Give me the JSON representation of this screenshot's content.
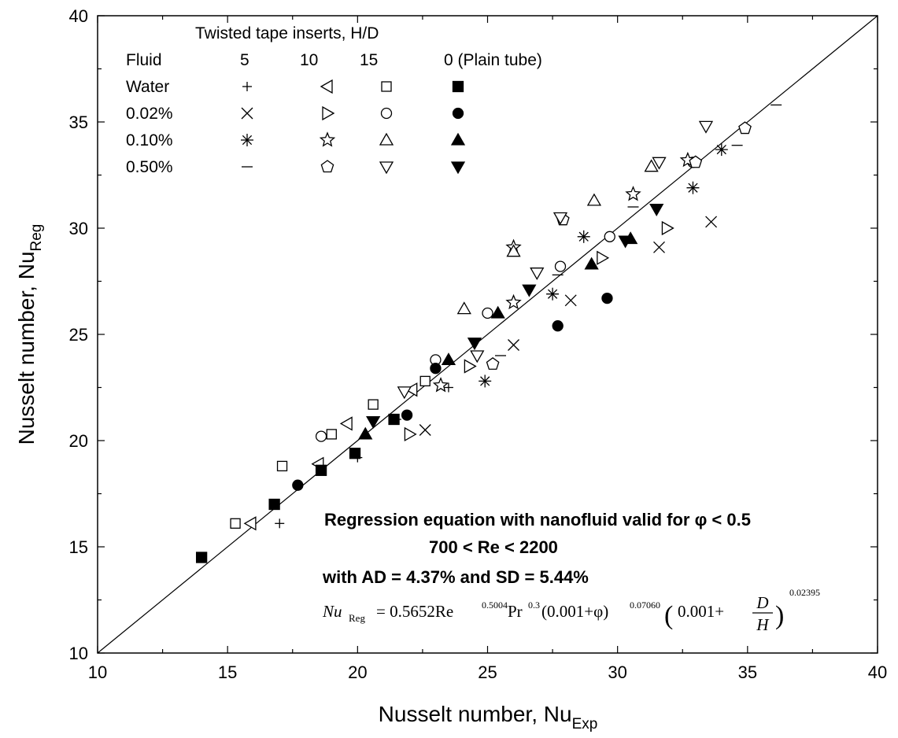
{
  "chart_data": {
    "type": "scatter",
    "xlabel": "Nusselt number, Nu",
    "xlabel_sub": "Exp",
    "ylabel": "Nusselt number, Nu",
    "ylabel_sub": "Reg",
    "xlim": [
      10,
      40
    ],
    "ylim": [
      10,
      40
    ],
    "xticks": [
      "10",
      "15",
      "20",
      "25",
      "30",
      "35",
      "40"
    ],
    "yticks": [
      "10",
      "15",
      "20",
      "25",
      "30",
      "35",
      "40"
    ],
    "grid": false,
    "legend_placement": "top-left",
    "reference_line": {
      "from": [
        10,
        10
      ],
      "to": [
        40,
        40
      ]
    },
    "legend": {
      "title": "Twisted tape inserts, H/D",
      "fluid_header": "Fluid",
      "columns": [
        "5",
        "10",
        "15",
        "0 (Plain tube)"
      ],
      "rows": [
        "Water",
        "0.02%",
        "0.10%",
        "0.50%"
      ]
    },
    "annotations": {
      "line1": "Regression equation with nanofluid valid for φ < 0.5",
      "line2": "700 < Re < 2200",
      "line3": "with AD = 4.37% and SD = 5.44%"
    },
    "equation": {
      "lhs": "Nu",
      "lhs_sub": "Reg",
      "coef": "= 0.5652Re",
      "re_exp": "0.5004",
      "pr": "Pr",
      "pr_exp": "0.3",
      "term1": "(0.001+φ)",
      "term1_exp": "0.07060",
      "term2_lead": "0.001+",
      "frac_num": "D",
      "frac_den": "H",
      "term2_exp": "0.02395",
      "open_paren": "(",
      "close_paren": ")"
    },
    "series": [
      {
        "name": "Water, H/D=5",
        "marker": "plus",
        "points": [
          [
            17.0,
            16.1
          ],
          [
            20.0,
            19.2
          ],
          [
            21.5,
            21.0
          ],
          [
            23.5,
            22.5
          ]
        ]
      },
      {
        "name": "Water, H/D=10",
        "marker": "tri-left",
        "points": [
          [
            15.9,
            16.1
          ],
          [
            18.5,
            18.9
          ],
          [
            19.6,
            20.8
          ],
          [
            22.1,
            22.4
          ]
        ]
      },
      {
        "name": "Water, H/D=15",
        "marker": "square-open",
        "points": [
          [
            15.3,
            16.1
          ],
          [
            17.1,
            18.8
          ],
          [
            19.0,
            20.3
          ],
          [
            20.6,
            21.7
          ],
          [
            22.6,
            22.8
          ]
        ]
      },
      {
        "name": "Water, H/D=0 (Plain tube)",
        "marker": "square-filled",
        "points": [
          [
            14.0,
            14.5
          ],
          [
            16.8,
            17.0
          ],
          [
            18.6,
            18.6
          ],
          [
            19.9,
            19.4
          ],
          [
            21.4,
            21.0
          ]
        ]
      },
      {
        "name": "0.02%, H/D=5",
        "marker": "cross",
        "points": [
          [
            22.6,
            20.5
          ],
          [
            26.0,
            24.5
          ],
          [
            28.2,
            26.6
          ],
          [
            31.6,
            29.1
          ],
          [
            33.6,
            30.3
          ]
        ]
      },
      {
        "name": "0.02%, H/D=10",
        "marker": "tri-right",
        "points": [
          [
            22.0,
            20.3
          ],
          [
            24.3,
            23.5
          ],
          [
            29.4,
            28.6
          ],
          [
            31.9,
            30.0
          ]
        ]
      },
      {
        "name": "0.02%, H/D=15",
        "marker": "circle-open",
        "points": [
          [
            18.6,
            20.2
          ],
          [
            23.0,
            23.8
          ],
          [
            25.0,
            26.0
          ],
          [
            27.8,
            28.2
          ],
          [
            29.7,
            29.6
          ],
          [
            32.9,
            33.1
          ]
        ]
      },
      {
        "name": "0.02%, H/D=0 (Plain tube)",
        "marker": "circle-filled",
        "points": [
          [
            17.7,
            17.9
          ],
          [
            21.9,
            21.2
          ],
          [
            23.0,
            23.4
          ],
          [
            27.7,
            25.4
          ],
          [
            29.6,
            26.7
          ]
        ]
      },
      {
        "name": "0.10%, H/D=5",
        "marker": "asterisk",
        "points": [
          [
            24.9,
            22.8
          ],
          [
            27.5,
            26.9
          ],
          [
            28.7,
            29.6
          ],
          [
            32.9,
            31.9
          ],
          [
            34.0,
            33.7
          ]
        ]
      },
      {
        "name": "0.10%, H/D=10",
        "marker": "star-open",
        "points": [
          [
            23.2,
            22.6
          ],
          [
            26.0,
            26.5
          ],
          [
            26.0,
            29.1
          ],
          [
            30.6,
            31.6
          ],
          [
            32.7,
            33.2
          ]
        ]
      },
      {
        "name": "0.10%, H/D=15",
        "marker": "tri-up-open",
        "points": [
          [
            24.1,
            26.2
          ],
          [
            26.0,
            28.9
          ],
          [
            29.1,
            31.3
          ],
          [
            31.3,
            32.9
          ]
        ]
      },
      {
        "name": "0.10%, H/D=0 (Plain tube)",
        "marker": "tri-up-filled",
        "points": [
          [
            20.3,
            20.3
          ],
          [
            23.5,
            23.8
          ],
          [
            25.4,
            26.0
          ],
          [
            29.0,
            28.3
          ],
          [
            30.5,
            29.5
          ]
        ]
      },
      {
        "name": "0.50%, H/D=5",
        "marker": "dash",
        "points": [
          [
            25.5,
            24.0
          ],
          [
            27.7,
            27.8
          ],
          [
            30.6,
            31.0
          ],
          [
            34.6,
            33.9
          ],
          [
            36.1,
            35.8
          ]
        ]
      },
      {
        "name": "0.50%, H/D=10",
        "marker": "pentagon-open",
        "points": [
          [
            25.2,
            23.6
          ],
          [
            27.9,
            30.4
          ],
          [
            33.0,
            33.1
          ],
          [
            34.9,
            34.7
          ]
        ]
      },
      {
        "name": "0.50%, H/D=15",
        "marker": "tri-down-open",
        "points": [
          [
            21.8,
            22.3
          ],
          [
            24.6,
            24.0
          ],
          [
            26.9,
            27.9
          ],
          [
            27.8,
            30.5
          ],
          [
            31.6,
            33.1
          ],
          [
            33.4,
            34.8
          ]
        ]
      },
      {
        "name": "0.50%, H/D=0 (Plain tube)",
        "marker": "tri-down-filled",
        "points": [
          [
            20.6,
            20.9
          ],
          [
            24.5,
            24.6
          ],
          [
            26.6,
            27.1
          ],
          [
            30.3,
            29.4
          ],
          [
            31.5,
            30.9
          ]
        ]
      }
    ]
  }
}
